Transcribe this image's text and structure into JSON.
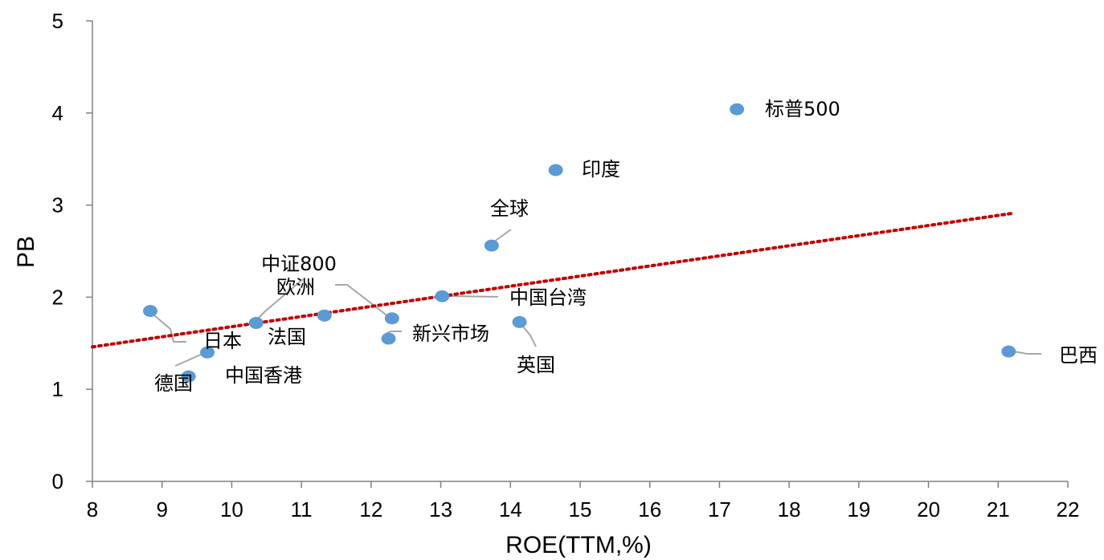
{
  "chart_data": {
    "type": "scatter",
    "xlabel": "ROE(TTM,%)",
    "ylabel": "PB",
    "xlim": [
      8,
      22
    ],
    "ylim": [
      0,
      5
    ],
    "x_ticks": [
      "8",
      "9",
      "10",
      "11",
      "12",
      "13",
      "14",
      "15",
      "16",
      "17",
      "18",
      "19",
      "20",
      "21",
      "22"
    ],
    "y_ticks": [
      "0",
      "1",
      "2",
      "3",
      "4",
      "5"
    ],
    "grid": false,
    "marker_color": "#5b9bd5",
    "trendline": {
      "style": "dotted",
      "color": "#c00000",
      "x": [
        8,
        21.2
      ],
      "y": [
        1.46,
        2.91
      ]
    },
    "points": [
      {
        "label": "标普500",
        "x": 17.25,
        "y": 4.04
      },
      {
        "label": "印度",
        "x": 14.65,
        "y": 3.38
      },
      {
        "label": "全球",
        "x": 13.73,
        "y": 2.56
      },
      {
        "label": "中国台湾",
        "x": 13.02,
        "y": 2.01
      },
      {
        "label": "英国",
        "x": 14.13,
        "y": 1.73
      },
      {
        "label": "新兴市场",
        "x": 12.25,
        "y": 1.55
      },
      {
        "label": "欧洲",
        "x": 12.3,
        "y": 1.77
      },
      {
        "label": "中证800",
        "x": 10.35,
        "y": 1.72
      },
      {
        "label": "法国",
        "x": 11.33,
        "y": 1.8
      },
      {
        "label": "日本",
        "x": 8.83,
        "y": 1.85
      },
      {
        "label": "中国香港",
        "x": 9.65,
        "y": 1.4
      },
      {
        "label": "德国",
        "x": 9.38,
        "y": 1.14
      },
      {
        "label": "巴西",
        "x": 21.15,
        "y": 1.41
      }
    ]
  }
}
